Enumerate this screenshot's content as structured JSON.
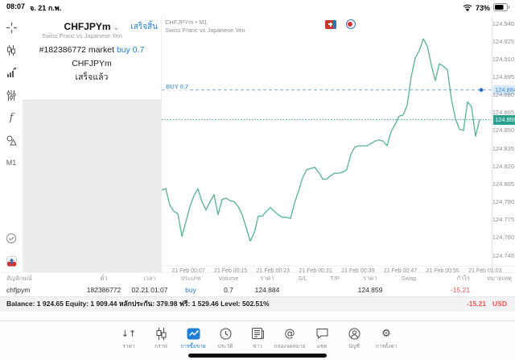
{
  "status_bar": {
    "time": "08:07",
    "date": "จ. 21 ก.พ.",
    "battery": "73%"
  },
  "side_toolbar": {
    "icons": [
      "crosshair-icon",
      "candlestick-icon",
      "indicator-chart-icon",
      "sliders-icon",
      "function-icon",
      "objects-icon"
    ],
    "timeframe": "M1",
    "bottom_icons": [
      "circle-check-icon",
      "new-order-icon"
    ]
  },
  "order_panel": {
    "symbol": "CHFJPYm",
    "done_button": "เสร็จสิ้น",
    "description": "Swiss Franc vs Japanese Yen",
    "order_prefix": "#182386772 market",
    "order_action": "buy 0.7",
    "order_symbol": "CHFJPYm",
    "order_status": "เสร็จแล้ว"
  },
  "chart_data": {
    "type": "line",
    "title": "CHFJPYm • M1",
    "subtitle": "Swiss Franc vs Japanese Yen",
    "symbol": "CHFJPYm",
    "timeframe": "M1",
    "x_labels": [
      "21 Feb 00:07",
      "21 Feb 00:15",
      "21 Feb 00:23",
      "21 Feb 00:31",
      "21 Feb 00:39",
      "21 Feb 00:47",
      "21 Feb 00:55",
      "21 Feb 01:03"
    ],
    "y_ticks": [
      124.94,
      124.925,
      124.91,
      124.895,
      124.88,
      124.865,
      124.85,
      124.835,
      124.82,
      124.805,
      124.79,
      124.775,
      124.76,
      124.745
    ],
    "ylim": [
      124.737,
      124.948
    ],
    "grid": false,
    "series": [
      {
        "name": "CHFJPYm",
        "values": [
          124.8,
          124.801,
          124.787,
          124.782,
          124.78,
          124.761,
          124.773,
          124.786,
          124.795,
          124.801,
          124.79,
          124.783,
          124.79,
          124.796,
          124.779,
          124.792,
          124.793,
          124.791,
          124.79,
          124.786,
          124.779,
          124.768,
          124.757,
          124.764,
          124.778,
          124.778,
          124.782,
          124.785,
          124.782,
          124.779,
          124.777,
          124.777,
          124.776,
          124.789,
          124.799,
          124.81,
          124.817,
          124.818,
          124.819,
          124.815,
          124.809,
          124.809,
          124.812,
          124.814,
          124.814,
          124.815,
          124.817,
          124.83,
          124.836,
          124.837,
          124.837,
          124.837,
          124.839,
          124.841,
          124.842,
          124.841,
          124.837,
          124.849,
          124.855,
          124.862,
          124.863,
          124.871,
          124.895,
          124.911,
          124.917,
          124.927,
          124.921,
          124.905,
          124.892,
          124.906,
          124.904,
          124.901,
          124.876,
          124.86,
          124.851,
          124.85,
          124.874,
          124.87,
          124.845,
          124.859
        ]
      }
    ],
    "order_line": {
      "label": "BUY 0.7",
      "price": 124.884
    },
    "current_price": 124.859,
    "colors": {
      "line": "#56b295",
      "order": "#6aa5e0",
      "current": "#2aa18c"
    }
  },
  "positions_table": {
    "headers": [
      "สัญลักษณ์",
      "ตั๋ว",
      "เวลา",
      "ประเภท",
      "Volume",
      "ราคา",
      "S/L",
      "T/P",
      "ราคา",
      "Swap",
      "กำไร",
      "หมายเหตุ"
    ],
    "row": {
      "symbol": "chfjpym",
      "ticket": "182386772",
      "time": "02.21 01:07",
      "type": "buy",
      "volume": "0.7",
      "price": "124.884",
      "sl": "",
      "tp": "",
      "price_current": "124.859",
      "swap": "",
      "profit": "-15.21",
      "comment": ""
    }
  },
  "account_summary": {
    "text": "Balance: 1 924.65 Equity: 1 909.44 หลักประกัน: 379.98 ฟรี: 1 529.46 Level: 502.51%",
    "profit": "-15.21",
    "currency": "USD"
  },
  "nav_bar": {
    "items": [
      {
        "label": "ราคา",
        "icon": "quotes-icon"
      },
      {
        "label": "กราฟ",
        "icon": "chart-icon"
      },
      {
        "label": "การซื้อขาย",
        "icon": "trade-icon",
        "active": true
      },
      {
        "label": "ประวัติ",
        "icon": "history-icon"
      },
      {
        "label": "ข่าว",
        "icon": "news-icon"
      },
      {
        "label": "กล่องจดหมาย",
        "icon": "mailbox-icon"
      },
      {
        "label": "แชท",
        "icon": "chat-icon"
      },
      {
        "label": "บัญชี",
        "icon": "accounts-icon"
      },
      {
        "label": "การตั้งค่า",
        "icon": "settings-icon"
      }
    ]
  }
}
